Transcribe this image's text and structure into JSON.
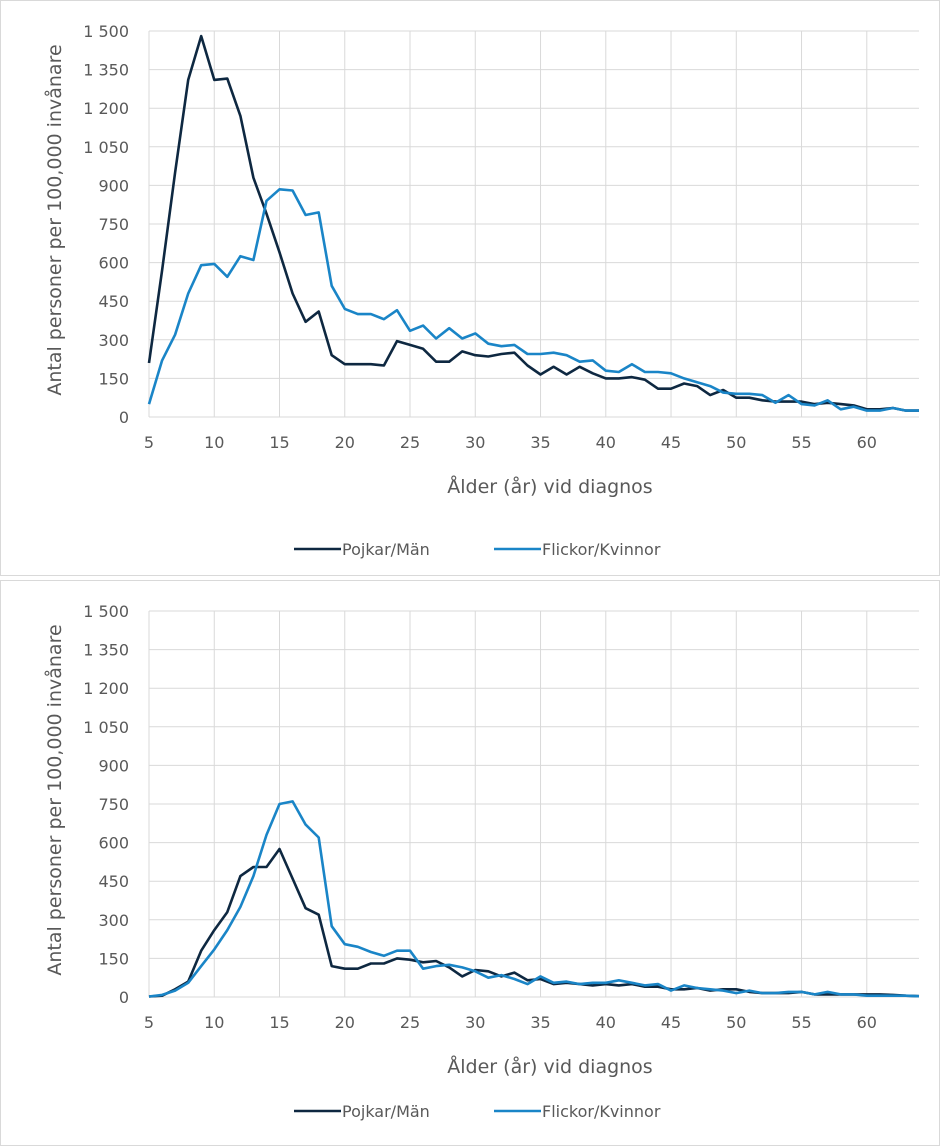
{
  "chart_data": [
    {
      "type": "line",
      "title": "",
      "xlabel": "Ålder (år) vid diagnos",
      "ylabel": "Antal personer per 100,000 invånare",
      "xlim": [
        5,
        64
      ],
      "ylim": [
        0,
        1500
      ],
      "x_ticks": [
        "5",
        "10",
        "15",
        "20",
        "25",
        "30",
        "35",
        "40",
        "45",
        "50",
        "55",
        "60"
      ],
      "y_ticks": [
        "0",
        "150",
        "300",
        "450",
        "600",
        "750",
        "900",
        "1 050",
        "1 200",
        "1 350",
        "1 500"
      ],
      "grid": true,
      "legend_position": "bottom",
      "x": [
        5,
        6,
        7,
        8,
        9,
        10,
        11,
        12,
        13,
        14,
        15,
        16,
        17,
        18,
        19,
        20,
        21,
        22,
        23,
        24,
        25,
        26,
        27,
        28,
        29,
        30,
        31,
        32,
        33,
        34,
        35,
        36,
        37,
        38,
        39,
        40,
        41,
        42,
        43,
        44,
        45,
        46,
        47,
        48,
        49,
        50,
        51,
        52,
        53,
        54,
        55,
        56,
        57,
        58,
        59,
        60,
        61,
        62,
        63,
        64
      ],
      "series": [
        {
          "name": "Pojkar/Män",
          "color": "#0e2841",
          "values": [
            210,
            570,
            950,
            1310,
            1480,
            1310,
            1315,
            1170,
            930,
            790,
            640,
            480,
            370,
            410,
            240,
            205,
            205,
            205,
            200,
            295,
            280,
            265,
            215,
            215,
            255,
            240,
            235,
            245,
            250,
            200,
            165,
            195,
            165,
            195,
            170,
            150,
            150,
            155,
            145,
            110,
            110,
            130,
            120,
            85,
            105,
            75,
            75,
            65,
            60,
            60,
            60,
            50,
            55,
            50,
            45,
            30,
            30,
            35,
            25,
            25
          ]
        },
        {
          "name": "Flickor/Kvinnor",
          "color": "#1a85c7",
          "values": [
            50,
            220,
            320,
            480,
            590,
            595,
            545,
            625,
            610,
            840,
            885,
            880,
            785,
            795,
            510,
            420,
            400,
            400,
            380,
            415,
            335,
            355,
            305,
            345,
            305,
            325,
            285,
            275,
            280,
            245,
            245,
            250,
            240,
            215,
            220,
            180,
            175,
            205,
            175,
            175,
            170,
            150,
            135,
            120,
            95,
            90,
            90,
            85,
            55,
            85,
            50,
            45,
            65,
            30,
            40,
            25,
            25,
            35,
            25,
            25
          ]
        }
      ]
    },
    {
      "type": "line",
      "title": "",
      "xlabel": "Ålder (år) vid diagnos",
      "ylabel": "Antal personer per 100,000 invånare",
      "xlim": [
        5,
        64
      ],
      "ylim": [
        0,
        1500
      ],
      "x_ticks": [
        "5",
        "10",
        "15",
        "20",
        "25",
        "30",
        "35",
        "40",
        "45",
        "50",
        "55",
        "60"
      ],
      "y_ticks": [
        "0",
        "150",
        "300",
        "450",
        "600",
        "750",
        "900",
        "1 050",
        "1 200",
        "1 350",
        "1 500"
      ],
      "grid": true,
      "legend_position": "bottom",
      "x": [
        5,
        6,
        7,
        8,
        9,
        10,
        11,
        12,
        13,
        14,
        15,
        16,
        17,
        18,
        19,
        20,
        21,
        22,
        23,
        24,
        25,
        26,
        27,
        28,
        29,
        30,
        31,
        32,
        33,
        34,
        35,
        36,
        37,
        38,
        39,
        40,
        41,
        42,
        43,
        44,
        45,
        46,
        47,
        48,
        49,
        50,
        51,
        52,
        53,
        54,
        55,
        56,
        57,
        58,
        59,
        60,
        61,
        62,
        63,
        64
      ],
      "series": [
        {
          "name": "Pojkar/Män",
          "color": "#0e2841",
          "values": [
            2,
            5,
            30,
            60,
            180,
            260,
            330,
            470,
            505,
            505,
            575,
            460,
            345,
            320,
            120,
            110,
            110,
            130,
            130,
            150,
            145,
            135,
            140,
            115,
            80,
            105,
            100,
            80,
            95,
            65,
            70,
            50,
            55,
            50,
            45,
            50,
            45,
            50,
            40,
            40,
            30,
            30,
            35,
            25,
            30,
            30,
            20,
            15,
            15,
            15,
            20,
            10,
            10,
            10,
            10,
            10,
            10,
            8,
            5,
            3
          ]
        },
        {
          "name": "Flickor/Kvinnor",
          "color": "#1a85c7",
          "values": [
            2,
            8,
            25,
            55,
            120,
            185,
            260,
            350,
            470,
            630,
            750,
            760,
            670,
            620,
            275,
            205,
            195,
            175,
            160,
            180,
            180,
            110,
            120,
            125,
            115,
            100,
            75,
            85,
            70,
            50,
            80,
            55,
            60,
            50,
            55,
            55,
            65,
            55,
            45,
            50,
            25,
            45,
            35,
            30,
            25,
            15,
            25,
            15,
            15,
            20,
            20,
            10,
            20,
            10,
            10,
            5,
            5,
            5,
            5,
            3
          ]
        }
      ]
    }
  ]
}
